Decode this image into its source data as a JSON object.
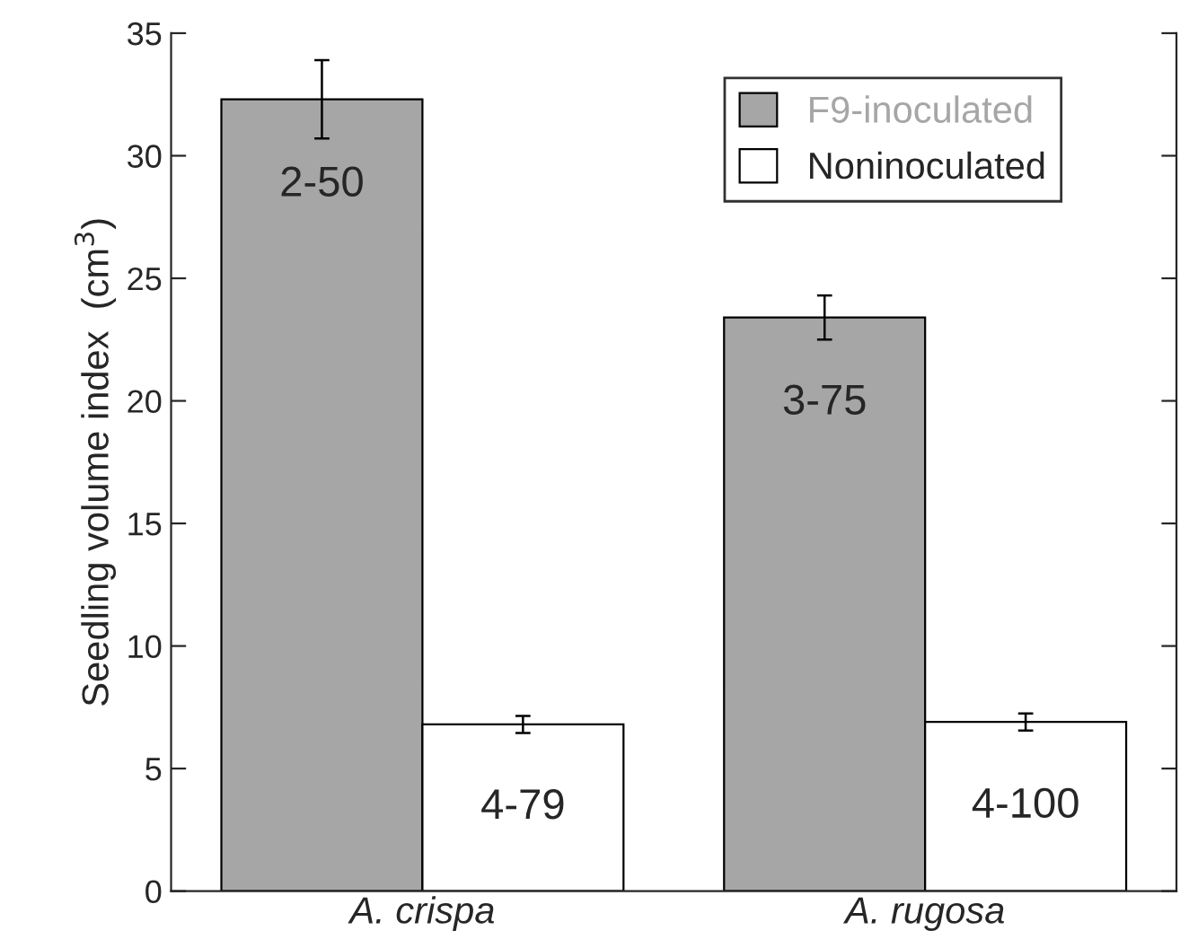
{
  "chart_data": {
    "type": "bar",
    "ylabel": "Seedling volume index  (cm$^{3}$)",
    "categories": [
      "A. crispa",
      "A. rugosa"
    ],
    "series": [
      {
        "name": "F9-inoculated",
        "color": "#a6a6a6",
        "values": [
          32.3,
          23.4
        ],
        "errors": [
          1.6,
          0.9
        ],
        "value_labels": [
          "2-50",
          "3-75"
        ]
      },
      {
        "name": "Noninoculated",
        "color": "#ffffff",
        "values": [
          6.8,
          6.9
        ],
        "errors": [
          0.35,
          0.35
        ],
        "value_labels": [
          "4-79",
          "4-100"
        ]
      }
    ],
    "ylim": [
      0,
      35
    ],
    "yticks": [
      0,
      5,
      10,
      15,
      20,
      25,
      30,
      35
    ],
    "grid": false,
    "legend": "top right"
  }
}
